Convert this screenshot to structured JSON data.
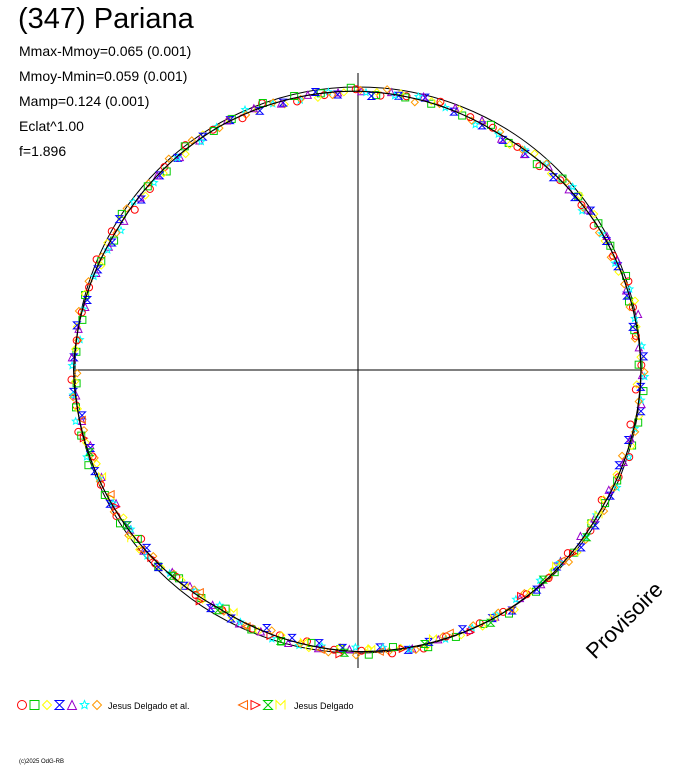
{
  "title": "(347) Pariana",
  "stats": [
    "Mmax-Mmoy=0.065 (0.001)",
    "Mmoy-Mmin=0.059 (0.001)",
    "Mamp=0.124 (0.001)",
    "Eclat^1.00",
    "f=1.896"
  ],
  "watermark": "Provisoire",
  "copyright": "(c)2025 OdG-RB",
  "colors": {
    "axis": "#000000",
    "fit_curve": "#000000",
    "reference_circle": "#000000"
  },
  "legend": [
    {
      "label": "Jesus Delgado et al.",
      "markers": [
        {
          "symbol": "circle",
          "color": "#ff0000"
        },
        {
          "symbol": "square",
          "color": "#00cc00"
        },
        {
          "symbol": "diamond",
          "color": "#ffff00"
        },
        {
          "symbol": "hourglass",
          "color": "#0000ff"
        },
        {
          "symbol": "triangle-up",
          "color": "#9900cc"
        },
        {
          "symbol": "star",
          "color": "#00ffff"
        },
        {
          "symbol": "diamond",
          "color": "#ff9900"
        }
      ]
    },
    {
      "label": "Jesus Delgado",
      "markers": [
        {
          "symbol": "triangle-left",
          "color": "#ff6600"
        },
        {
          "symbol": "triangle-right",
          "color": "#ff0000"
        },
        {
          "symbol": "hourglass",
          "color": "#00cc00"
        },
        {
          "symbol": "m-glyph",
          "color": "#ffff00"
        }
      ]
    }
  ],
  "chart_data": {
    "type": "scatter",
    "coordinate_system": "polar",
    "description_of_encoding": "",
    "reference_circle_radius": 1.0,
    "mmax_minus_mmoy": 0.065,
    "mmoy_minus_mmin": 0.059,
    "amplitude": 0.124,
    "amplitude_error": 0.001,
    "eclat_exponent": 1.0,
    "f": 1.896,
    "fit_curve_radius_profile": {
      "theta_deg": [
        0,
        30,
        60,
        90,
        120,
        150,
        180,
        210,
        240,
        270,
        300,
        330,
        360
      ],
      "r": [
        1.0,
        0.988,
        0.972,
        0.985,
        0.99,
        0.985,
        1.005,
        0.99,
        0.975,
        0.995,
        1.0,
        0.99,
        1.0
      ]
    },
    "series": [
      {
        "name": "Jesus Delgado et al.",
        "point_count": 420
      },
      {
        "name": "Jesus Delgado",
        "point_count": 40
      }
    ]
  }
}
